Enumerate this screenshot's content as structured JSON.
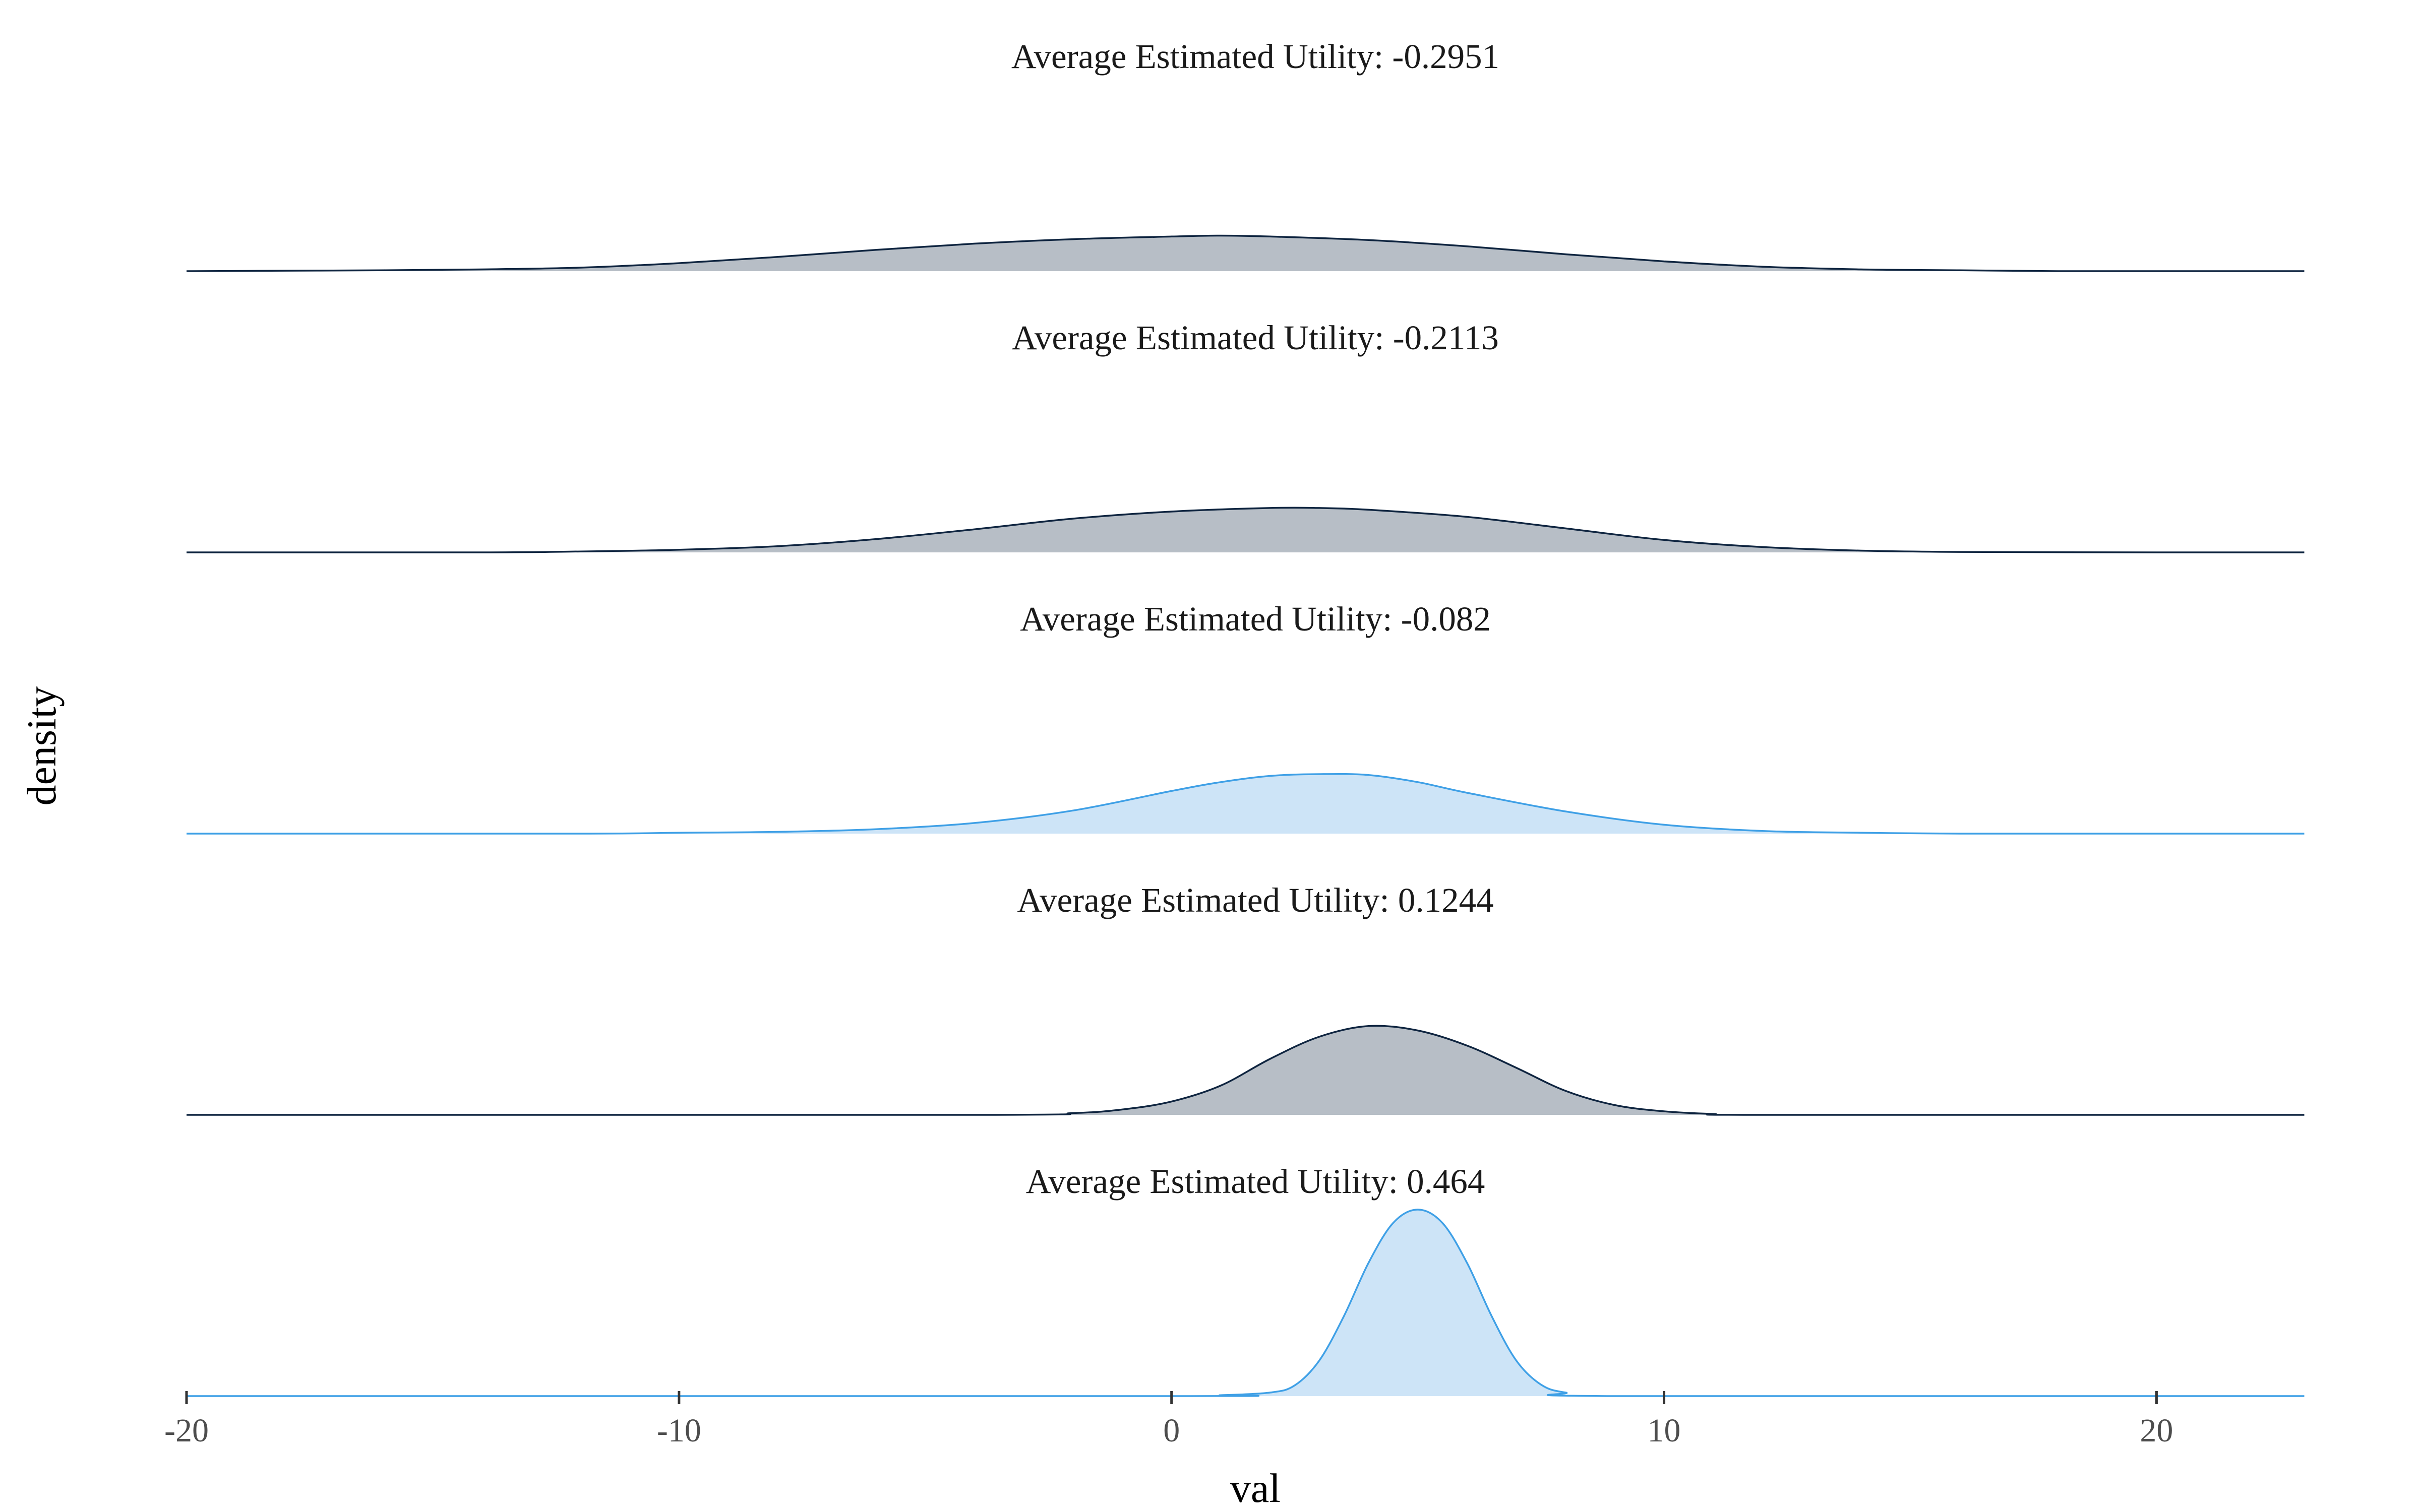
{
  "chart_data": {
    "type": "area",
    "xlabel": "val",
    "ylabel": "density",
    "xlim": [
      -20,
      23.2
    ],
    "x_ticks": [
      -20,
      -10,
      0,
      10,
      20
    ],
    "x_tick_labels": [
      "-20",
      "-10",
      "0",
      "10",
      "20"
    ],
    "grid": false,
    "legend": "none",
    "colors": {
      "dark_fill": "#b7bec6",
      "dark_line": "#0f2540",
      "light_fill": "#cde4f7",
      "light_line": "#3fa0e6",
      "axis_tick": "#333333"
    },
    "series": [
      {
        "title": "Average Estimated Utility: -0.2951",
        "style": "dark",
        "x": [
          -20,
          -18,
          -16,
          -14,
          -12,
          -10,
          -8,
          -6,
          -4,
          -2,
          0,
          1,
          2,
          4,
          6,
          8,
          10,
          12,
          14,
          16,
          18,
          20,
          23
        ],
        "y": [
          0.0,
          0.0005,
          0.001,
          0.002,
          0.004,
          0.009,
          0.016,
          0.024,
          0.031,
          0.036,
          0.039,
          0.04,
          0.039,
          0.035,
          0.028,
          0.019,
          0.011,
          0.005,
          0.002,
          0.001,
          0.0,
          0.0,
          0.0
        ]
      },
      {
        "title": "Average Estimated Utility: -0.2113",
        "style": "dark",
        "x": [
          -20,
          -14,
          -12,
          -10,
          -8,
          -6,
          -4,
          -2,
          0,
          2,
          3,
          4,
          6,
          8,
          10,
          12,
          14,
          16,
          20,
          23
        ],
        "y": [
          0.0,
          0.0,
          0.001,
          0.003,
          0.007,
          0.015,
          0.026,
          0.038,
          0.046,
          0.05,
          0.05,
          0.048,
          0.04,
          0.027,
          0.014,
          0.006,
          0.002,
          0.0005,
          0.0,
          0.0
        ]
      },
      {
        "title": "Average Estimated Utility: -0.082",
        "style": "light",
        "x": [
          -20,
          -12,
          -10,
          -8,
          -6,
          -4,
          -2,
          0,
          1,
          2,
          3,
          4,
          5,
          6,
          8,
          10,
          12,
          14,
          16,
          20,
          23
        ],
        "y": [
          0.0,
          0.0,
          0.001,
          0.002,
          0.005,
          0.012,
          0.026,
          0.048,
          0.058,
          0.065,
          0.067,
          0.066,
          0.058,
          0.046,
          0.025,
          0.01,
          0.003,
          0.001,
          0.0,
          0.0,
          0.0
        ]
      },
      {
        "title": "Average Estimated Utility: 0.1244",
        "style": "dark",
        "x": [
          -20,
          -4,
          -2,
          -1,
          0,
          1,
          2,
          3,
          4,
          5,
          6,
          7,
          8,
          9,
          10,
          11,
          12,
          23
        ],
        "y": [
          0.0,
          0.0,
          0.002,
          0.006,
          0.015,
          0.033,
          0.063,
          0.088,
          0.1,
          0.095,
          0.078,
          0.053,
          0.027,
          0.011,
          0.004,
          0.001,
          0.0,
          0.0
        ]
      },
      {
        "title": "Average Estimated Utility: 0.464",
        "style": "light",
        "x": [
          -20,
          0,
          1,
          2,
          2.5,
          3,
          3.5,
          4,
          4.5,
          5,
          5.5,
          6,
          6.5,
          7,
          7.5,
          8,
          9,
          23
        ],
        "y": [
          0.0,
          0.0,
          0.001,
          0.004,
          0.012,
          0.04,
          0.09,
          0.15,
          0.195,
          0.21,
          0.195,
          0.15,
          0.09,
          0.04,
          0.013,
          0.004,
          0.0,
          0.0
        ]
      }
    ]
  }
}
